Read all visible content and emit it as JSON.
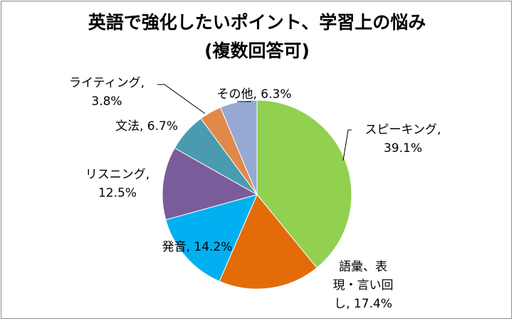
{
  "chart_data": {
    "type": "pie",
    "title": [
      "英語で強化したいポイント、学習上の悩み",
      "(複数回答可)"
    ],
    "slices": [
      {
        "name": "スピーキング",
        "value": 39.1,
        "display": "39.1%",
        "color": "#92d050"
      },
      {
        "name": "語彙、表現・言い回し",
        "value": 17.4,
        "display": "17.4%",
        "color": "#e36c09"
      },
      {
        "name": "発音",
        "value": 14.2,
        "display": "14.2%",
        "color": "#00b0f0"
      },
      {
        "name": "リスニング",
        "value": 12.5,
        "display": "12.5%",
        "color": "#7a5c9a"
      },
      {
        "name": "文法",
        "value": 6.7,
        "display": "6.7%",
        "color": "#4a9bb0"
      },
      {
        "name": "ライティング",
        "value": 3.8,
        "display": "3.8%",
        "color": "#e0894a"
      },
      {
        "name": "その他",
        "value": 6.3,
        "display": "6.3%",
        "color": "#95a9d2"
      }
    ],
    "labels": [
      {
        "lines": [
          "スピーキング,",
          "39.1%"
        ]
      },
      {
        "lines": [
          "語彙、表",
          "現・言い回",
          "し, 17.4%"
        ]
      },
      {
        "lines": [
          "発音, 14.2%"
        ]
      },
      {
        "lines": [
          "リスニング,",
          "12.5%"
        ]
      },
      {
        "lines": [
          "文法, 6.7%"
        ]
      },
      {
        "lines": [
          "ライティング,",
          "3.8%"
        ]
      },
      {
        "lines": [
          "その他, 6.3%"
        ]
      }
    ],
    "start_angle": "12 o'clock",
    "direction": "clockwise",
    "legend": "none"
  }
}
